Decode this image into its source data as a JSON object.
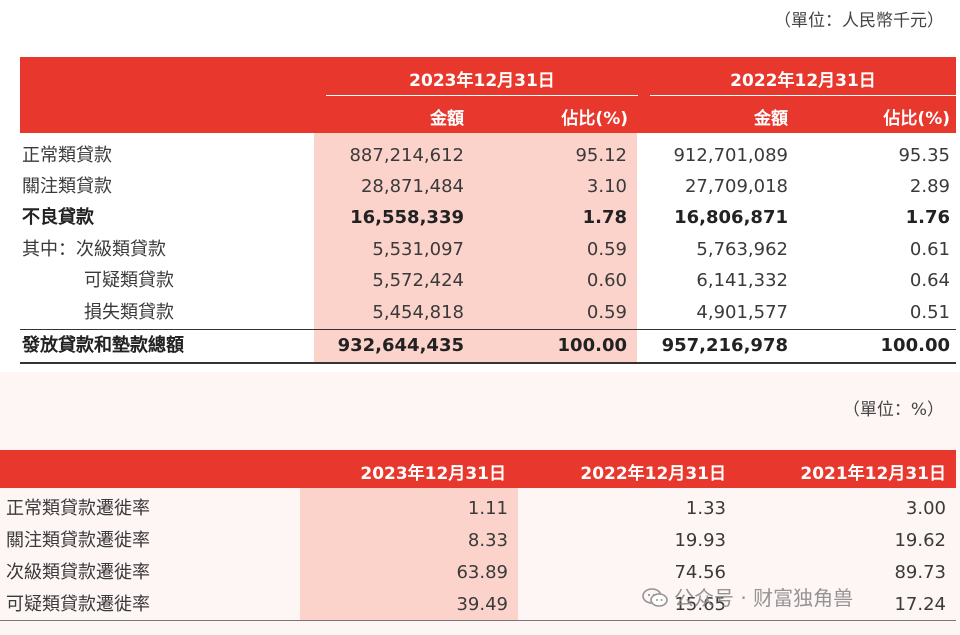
{
  "table1": {
    "unit": "（單位：人民幣千元）",
    "periods": [
      "2023年12月31日",
      "2022年12月31日"
    ],
    "col_amount": "金額",
    "col_ratio": "佔比(%)",
    "rows": [
      {
        "label": "正常類貸款",
        "a1": "887,214,612",
        "r1": "95.12",
        "a2": "912,701,089",
        "r2": "95.35",
        "bold": false
      },
      {
        "label": "關注類貸款",
        "a1": "28,871,484",
        "r1": "3.10",
        "a2": "27,709,018",
        "r2": "2.89",
        "bold": false
      },
      {
        "label": "不良貸款",
        "a1": "16,558,339",
        "r1": "1.78",
        "a2": "16,806,871",
        "r2": "1.76",
        "bold": true
      },
      {
        "label": "其中：次級類貸款",
        "a1": "5,531,097",
        "r1": "0.59",
        "a2": "5,763,962",
        "r2": "0.61",
        "bold": false
      },
      {
        "label": "可疑類貸款",
        "a1": "5,572,424",
        "r1": "0.60",
        "a2": "6,141,332",
        "r2": "0.64",
        "bold": false
      },
      {
        "label": "損失類貸款",
        "a1": "5,454,818",
        "r1": "0.59",
        "a2": "4,901,577",
        "r2": "0.51",
        "bold": false
      },
      {
        "label": "發放貸款和墊款總額",
        "a1": "932,644,435",
        "r1": "100.00",
        "a2": "957,216,978",
        "r2": "100.00",
        "bold": true
      }
    ]
  },
  "table2": {
    "unit": "（單位：%）",
    "periods": [
      "2023年12月31日",
      "2022年12月31日",
      "2021年12月31日"
    ],
    "rows": [
      {
        "label": "正常類貸款遷徙率",
        "v1": "1.11",
        "v2": "1.33",
        "v3": "3.00"
      },
      {
        "label": "關注類貸款遷徙率",
        "v1": "8.33",
        "v2": "19.93",
        "v3": "19.62"
      },
      {
        "label": "次級類貸款遷徙率",
        "v1": "63.89",
        "v2": "74.56",
        "v3": "89.73"
      },
      {
        "label": "可疑類貸款遷徙率",
        "v1": "39.49",
        "v2": "15.65",
        "v3": "17.24"
      }
    ]
  },
  "watermark": {
    "text": "公众号 · 财富独角兽",
    "icon": "wechat-icon"
  },
  "colors": {
    "header_red": "#e8372c",
    "highlight_pink": "#fbd3cb"
  }
}
